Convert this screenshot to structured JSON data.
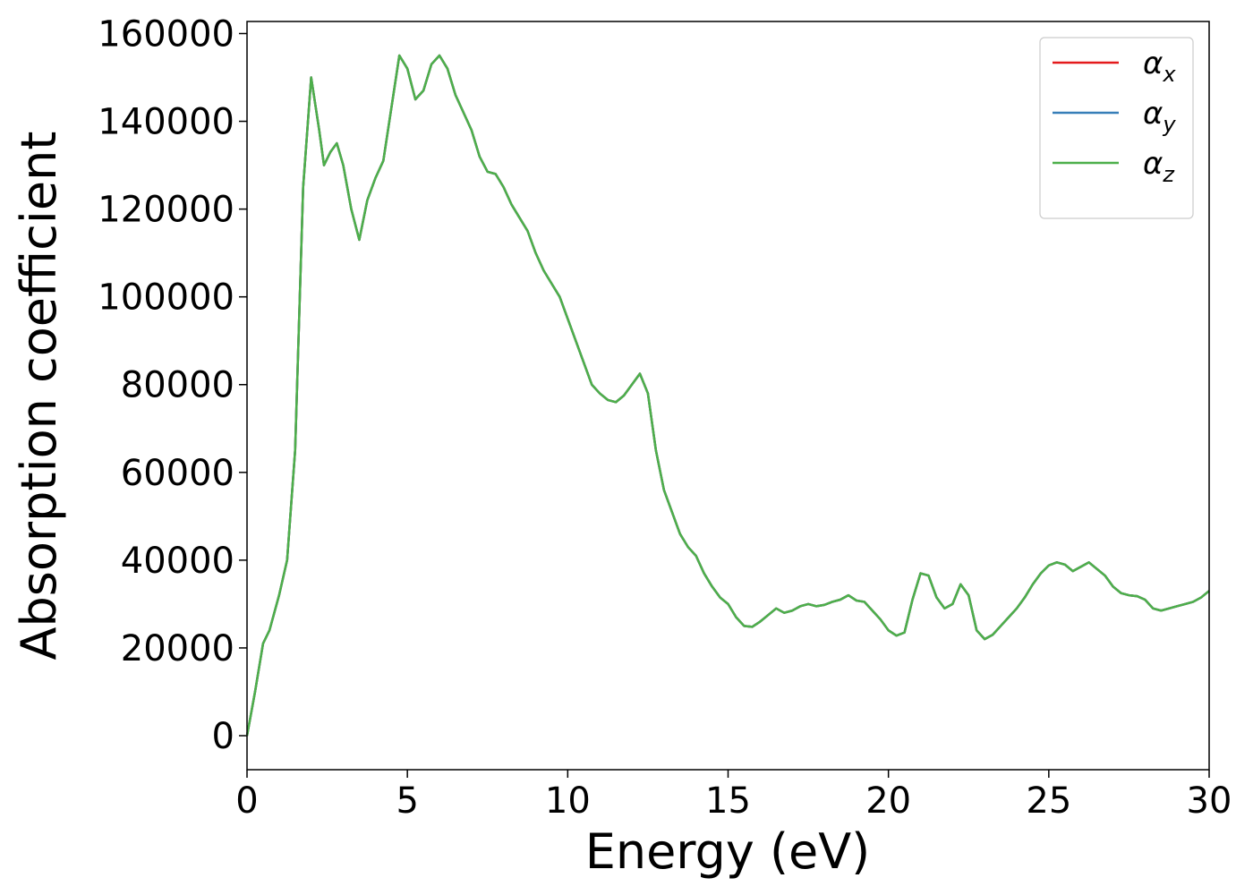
{
  "chart_data": {
    "type": "line",
    "xlabel": "Energy (eV)",
    "ylabel": "Absorption coefficient",
    "x": [
      0,
      0.25,
      0.5,
      0.7,
      1.0,
      1.25,
      1.5,
      1.75,
      2.0,
      2.25,
      2.4,
      2.6,
      2.8,
      3.0,
      3.25,
      3.5,
      3.75,
      4.0,
      4.25,
      4.5,
      4.75,
      5.0,
      5.25,
      5.5,
      5.75,
      6.0,
      6.25,
      6.5,
      6.75,
      7.0,
      7.25,
      7.5,
      7.75,
      8.0,
      8.25,
      8.5,
      8.75,
      9.0,
      9.25,
      9.5,
      9.75,
      10.0,
      10.25,
      10.5,
      10.75,
      11.0,
      11.25,
      11.5,
      11.75,
      12.0,
      12.25,
      12.5,
      12.75,
      13.0,
      13.25,
      13.5,
      13.75,
      14.0,
      14.25,
      14.5,
      14.75,
      15.0,
      15.25,
      15.5,
      15.75,
      16.0,
      16.25,
      16.5,
      16.75,
      17.0,
      17.25,
      17.5,
      17.75,
      18.0,
      18.25,
      18.5,
      18.75,
      19.0,
      19.25,
      19.5,
      19.75,
      20.0,
      20.25,
      20.5,
      20.75,
      21.0,
      21.25,
      21.5,
      21.75,
      22.0,
      22.25,
      22.5,
      22.75,
      23.0,
      23.25,
      23.5,
      23.75,
      24.0,
      24.25,
      24.5,
      24.75,
      25.0,
      25.25,
      25.5,
      25.75,
      26.0,
      26.25,
      26.5,
      26.75,
      27.0,
      27.25,
      27.5,
      27.75,
      28.0,
      28.25,
      28.5,
      28.75,
      29.0,
      29.25,
      29.5,
      29.75,
      30.0
    ],
    "series": [
      {
        "name": "αx",
        "color": "#e41a1c",
        "values": [
          0,
          10000,
          21000,
          24000,
          32000,
          40000,
          65000,
          125000,
          150000,
          138000,
          130000,
          133000,
          135000,
          130000,
          120000,
          113000,
          122000,
          127000,
          131000,
          143000,
          155000,
          152000,
          145000,
          147000,
          153000,
          155000,
          152000,
          146000,
          142000,
          138000,
          132000,
          128500,
          128000,
          125000,
          121000,
          118000,
          115000,
          110000,
          106000,
          103000,
          100000,
          95000,
          90000,
          85000,
          80000,
          78000,
          76500,
          76000,
          77500,
          80000,
          82500,
          78000,
          65000,
          56000,
          51000,
          46000,
          43000,
          41000,
          37000,
          34000,
          31500,
          30000,
          27000,
          25000,
          24800,
          26000,
          27500,
          29000,
          28000,
          28500,
          29500,
          30000,
          29500,
          29800,
          30500,
          31000,
          32000,
          30800,
          30500,
          28500,
          26500,
          24000,
          22800,
          23500,
          31000,
          37000,
          36500,
          31500,
          29000,
          30000,
          34500,
          32000,
          24000,
          22000,
          23000,
          25000,
          27000,
          29000,
          31500,
          34500,
          37000,
          38800,
          39500,
          39000,
          37500,
          38500,
          39500,
          38000,
          36500,
          34000,
          32500,
          32000,
          31800,
          31000,
          29000,
          28500,
          29000,
          29500,
          30000,
          30500,
          31500,
          33000
        ]
      },
      {
        "name": "αy",
        "color": "#377eb8",
        "values": [
          0,
          10000,
          21000,
          24000,
          32000,
          40000,
          65000,
          125000,
          150000,
          138000,
          130000,
          133000,
          135000,
          130000,
          120000,
          113000,
          122000,
          127000,
          131000,
          143000,
          155000,
          152000,
          145000,
          147000,
          153000,
          155000,
          152000,
          146000,
          142000,
          138000,
          132000,
          128500,
          128000,
          125000,
          121000,
          118000,
          115000,
          110000,
          106000,
          103000,
          100000,
          95000,
          90000,
          85000,
          80000,
          78000,
          76500,
          76000,
          77500,
          80000,
          82500,
          78000,
          65000,
          56000,
          51000,
          46000,
          43000,
          41000,
          37000,
          34000,
          31500,
          30000,
          27000,
          25000,
          24800,
          26000,
          27500,
          29000,
          28000,
          28500,
          29500,
          30000,
          29500,
          29800,
          30500,
          31000,
          32000,
          30800,
          30500,
          28500,
          26500,
          24000,
          22800,
          23500,
          31000,
          37000,
          36500,
          31500,
          29000,
          30000,
          34500,
          32000,
          24000,
          22000,
          23000,
          25000,
          27000,
          29000,
          31500,
          34500,
          37000,
          38800,
          39500,
          39000,
          37500,
          38500,
          39500,
          38000,
          36500,
          34000,
          32500,
          32000,
          31800,
          31000,
          29000,
          28500,
          29000,
          29500,
          30000,
          30500,
          31500,
          33000
        ]
      },
      {
        "name": "αz",
        "color": "#4daf4a",
        "values": [
          0,
          10000,
          21000,
          24000,
          32000,
          40000,
          65000,
          125000,
          150000,
          138000,
          130000,
          133000,
          135000,
          130000,
          120000,
          113000,
          122000,
          127000,
          131000,
          143000,
          155000,
          152000,
          145000,
          147000,
          153000,
          155000,
          152000,
          146000,
          142000,
          138000,
          132000,
          128500,
          128000,
          125000,
          121000,
          118000,
          115000,
          110000,
          106000,
          103000,
          100000,
          95000,
          90000,
          85000,
          80000,
          78000,
          76500,
          76000,
          77500,
          80000,
          82500,
          78000,
          65000,
          56000,
          51000,
          46000,
          43000,
          41000,
          37000,
          34000,
          31500,
          30000,
          27000,
          25000,
          24800,
          26000,
          27500,
          29000,
          28000,
          28500,
          29500,
          30000,
          29500,
          29800,
          30500,
          31000,
          32000,
          30800,
          30500,
          28500,
          26500,
          24000,
          22800,
          23500,
          31000,
          37000,
          36500,
          31500,
          29000,
          30000,
          34500,
          32000,
          24000,
          22000,
          23000,
          25000,
          27000,
          29000,
          31500,
          34500,
          37000,
          38800,
          39500,
          39000,
          37500,
          38500,
          39500,
          38000,
          36500,
          34000,
          32500,
          32000,
          31800,
          31000,
          29000,
          28500,
          29000,
          29500,
          30000,
          30500,
          31500,
          33000
        ]
      }
    ],
    "xlim": [
      0,
      30
    ],
    "ylim": [
      -7750,
      162750
    ],
    "xticks": [
      0,
      5,
      10,
      15,
      20,
      25,
      30
    ],
    "yticks": [
      0,
      20000,
      40000,
      60000,
      80000,
      100000,
      120000,
      140000,
      160000
    ],
    "legend": "upper right"
  }
}
